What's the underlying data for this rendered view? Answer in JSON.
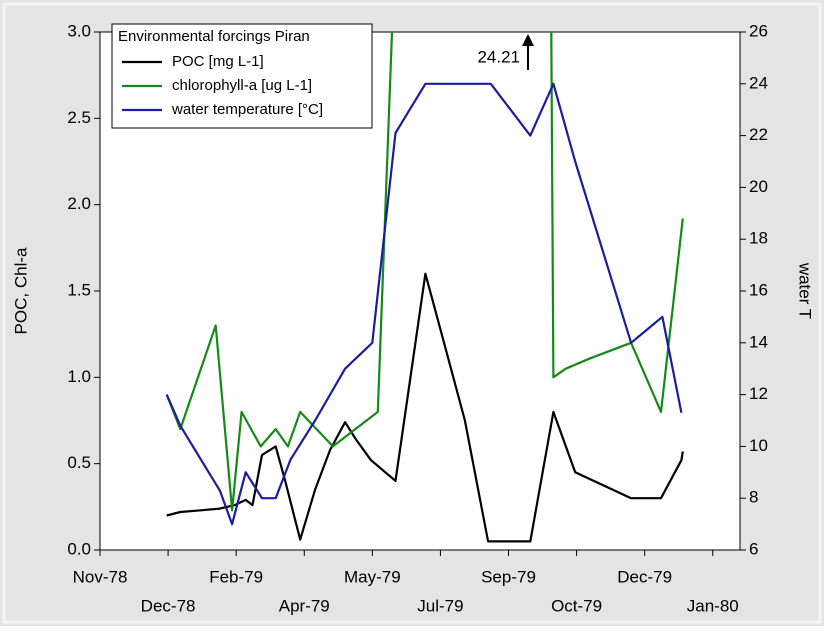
{
  "chart_data": {
    "type": "line",
    "legend_title": "Environmental forcings Piran",
    "y_label": "POC, Chl-a",
    "y2_label": "water T",
    "annotation": "24.21",
    "xlim": [
      28800,
      29270
    ],
    "xticks": [
      {
        "value": 28800,
        "label": "Nov-78"
      },
      {
        "value": 28850,
        "label": "Dec-78"
      },
      {
        "value": 28900,
        "label": "Feb-79"
      },
      {
        "value": 28950,
        "label": "Apr-79"
      },
      {
        "value": 29000,
        "label": "May-79"
      },
      {
        "value": 29050,
        "label": "Jul-79"
      },
      {
        "value": 29100,
        "label": "Sep-79"
      },
      {
        "value": 29150,
        "label": "Oct-79"
      },
      {
        "value": 29200,
        "label": "Dec-79"
      },
      {
        "value": 29250,
        "label": "Jan-80"
      }
    ],
    "ylim": [
      0,
      3
    ],
    "yticks": [
      {
        "value": 0,
        "label": "0.0"
      },
      0.5,
      {
        "value": 1,
        "label": "1.0"
      },
      1.5,
      {
        "value": 2,
        "label": "2.0"
      },
      2.5,
      {
        "value": 3,
        "label": "3.0"
      }
    ],
    "y2lim": [
      6,
      26
    ],
    "y2ticks": [
      6,
      8,
      10,
      12,
      14,
      16,
      18,
      20,
      22,
      24,
      26
    ],
    "legend": "upper left",
    "series": [
      {
        "name": "POC [mg L-1]",
        "color": "#000000",
        "x": [
          28849,
          28859,
          28874,
          28888,
          28899,
          28907,
          28912,
          28919,
          28929,
          28936,
          28947,
          28958,
          28969,
          28980,
          28988,
          28999,
          29017,
          29039,
          29054,
          29068,
          29085,
          29116,
          29133,
          29149,
          29190,
          29212,
          29227,
          29228
        ],
        "values": [
          0.2,
          0.22,
          0.23,
          0.24,
          0.26,
          0.29,
          0.26,
          0.55,
          0.6,
          0.4,
          0.06,
          0.35,
          0.58,
          0.74,
          0.64,
          0.52,
          0.4,
          1.6,
          1.16,
          0.75,
          0.05,
          0.05,
          0.8,
          0.45,
          0.3,
          0.3,
          0.52,
          0.57
        ]
      },
      {
        "name": "chlorophyll-a [ug L-1]",
        "color": "#168a16",
        "x": [
          28849,
          28859,
          28885,
          28897,
          28904,
          28918,
          28929,
          28938,
          28947,
          28971,
          29004,
          29115,
          29133,
          29142,
          29160,
          29190,
          29212,
          29228
        ],
        "values": [
          0.9,
          0.7,
          1.3,
          0.23,
          0.8,
          0.6,
          0.7,
          0.6,
          0.8,
          0.6,
          0.8,
          24.21,
          1.0,
          1.05,
          1.11,
          1.2,
          0.8,
          1.92
        ]
      },
      {
        "name": "water temperature [°C]",
        "color": "#1c1ca0",
        "axis": "y2",
        "x": [
          28849,
          28859,
          28874,
          28888,
          28897,
          28907,
          28919,
          28929,
          28940,
          28958,
          28980,
          29000,
          29017,
          29039,
          29087,
          29116,
          29133,
          29149,
          29190,
          29213,
          29227
        ],
        "values": [
          12.0,
          10.8,
          9.5,
          8.3,
          7.0,
          9.0,
          8.0,
          8.0,
          9.5,
          11.0,
          13.0,
          14.0,
          22.1,
          24,
          24,
          22,
          24,
          21,
          14,
          15,
          11.3
        ]
      }
    ]
  }
}
